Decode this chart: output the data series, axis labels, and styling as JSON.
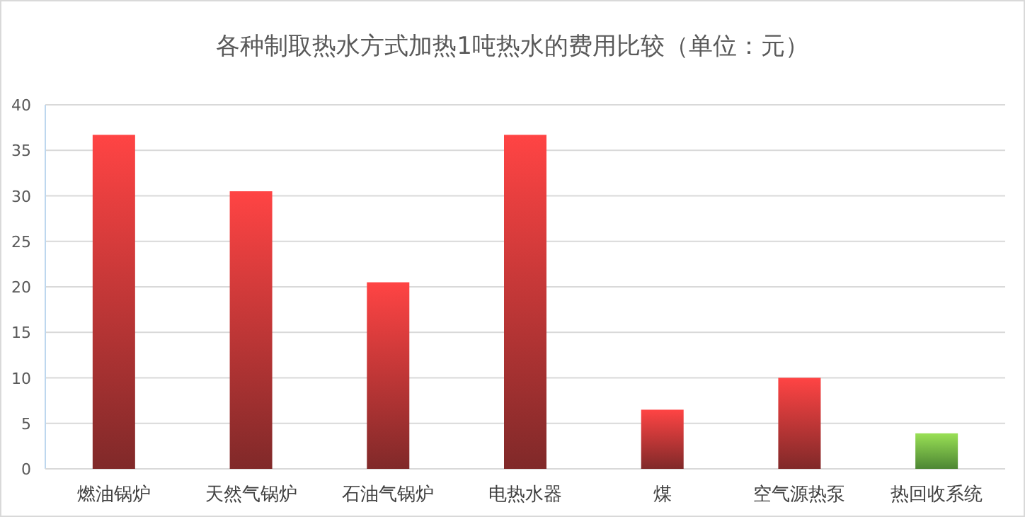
{
  "chart_data": {
    "type": "bar",
    "title": "各种制取热水方式加热1吨热水的费用比较（单位：元）",
    "categories": [
      "燃油锅炉",
      "天然气锅炉",
      "石油气锅炉",
      "电热水器",
      "煤",
      "空气源热泵",
      "热回收系统"
    ],
    "values": [
      36.7,
      30.5,
      20.5,
      36.7,
      6.5,
      10,
      3.9
    ],
    "colors": [
      "#ff4444",
      "#ff4444",
      "#ff4444",
      "#ff4444",
      "#ff4444",
      "#ff4444",
      "#99e055"
    ],
    "ylim": [
      0,
      40
    ],
    "yticks": [
      0,
      5,
      10,
      15,
      20,
      25,
      30,
      35,
      40
    ],
    "grid": "y"
  }
}
